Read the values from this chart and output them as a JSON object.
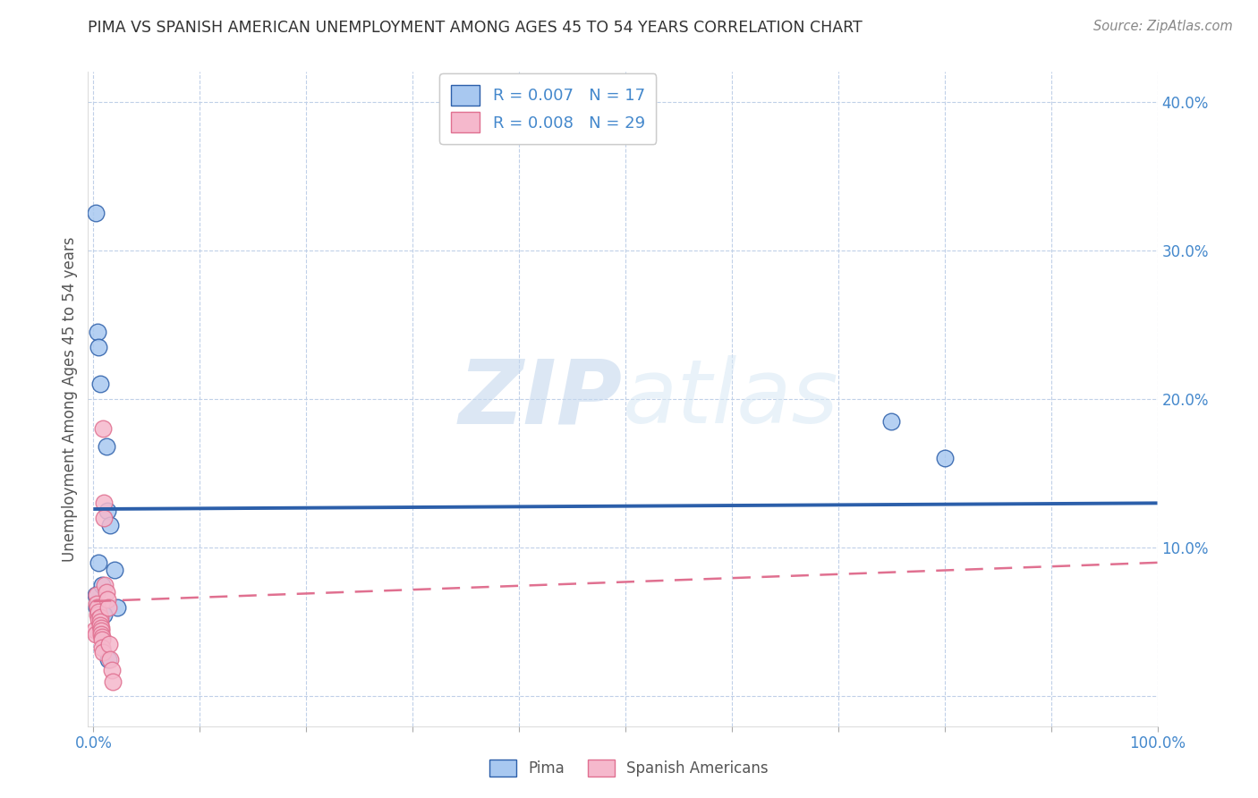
{
  "title": "PIMA VS SPANISH AMERICAN UNEMPLOYMENT AMONG AGES 45 TO 54 YEARS CORRELATION CHART",
  "source": "Source: ZipAtlas.com",
  "ylabel": "Unemployment Among Ages 45 to 54 years",
  "xlim": [
    -0.005,
    1.0
  ],
  "ylim": [
    -0.02,
    0.42
  ],
  "xtick_positions": [
    0.0,
    0.1,
    0.2,
    0.3,
    0.4,
    0.5,
    0.6,
    0.7,
    0.8,
    0.9,
    1.0
  ],
  "xticklabels": [
    "0.0%",
    "",
    "",
    "",
    "",
    "",
    "",
    "",
    "",
    "",
    "100.0%"
  ],
  "ytick_positions": [
    0.0,
    0.1,
    0.2,
    0.3,
    0.4
  ],
  "yticklabels": [
    "",
    "10.0%",
    "20.0%",
    "30.0%",
    "40.0%"
  ],
  "legend_pima": "R = 0.007   N = 17",
  "legend_spanish": "R = 0.008   N = 29",
  "pima_color": "#a8c8f0",
  "spanish_color": "#f5b8cc",
  "trend_pima_color": "#2c5faa",
  "trend_spanish_color": "#e07090",
  "tick_color": "#4488cc",
  "watermark_zip": "ZIP",
  "watermark_atlas": "atlas",
  "pima_x": [
    0.002,
    0.004,
    0.005,
    0.006,
    0.012,
    0.013,
    0.016,
    0.02,
    0.022,
    0.75,
    0.8,
    0.002,
    0.003,
    0.005,
    0.008,
    0.01,
    0.014
  ],
  "pima_y": [
    0.325,
    0.245,
    0.235,
    0.21,
    0.168,
    0.125,
    0.115,
    0.085,
    0.06,
    0.185,
    0.16,
    0.068,
    0.06,
    0.09,
    0.075,
    0.055,
    0.025
  ],
  "sp_x": [
    0.001,
    0.002,
    0.003,
    0.003,
    0.004,
    0.004,
    0.005,
    0.005,
    0.006,
    0.006,
    0.006,
    0.007,
    0.007,
    0.007,
    0.008,
    0.008,
    0.008,
    0.009,
    0.009,
    0.01,
    0.01,
    0.011,
    0.012,
    0.013,
    0.014,
    0.015,
    0.016,
    0.017,
    0.018
  ],
  "sp_y": [
    0.045,
    0.042,
    0.068,
    0.062,
    0.06,
    0.055,
    0.057,
    0.052,
    0.053,
    0.05,
    0.048,
    0.046,
    0.044,
    0.042,
    0.04,
    0.038,
    0.033,
    0.18,
    0.03,
    0.13,
    0.12,
    0.075,
    0.07,
    0.065,
    0.06,
    0.035,
    0.025,
    0.018,
    0.01
  ],
  "pima_trend_y0": 0.126,
  "pima_trend_y1": 0.13,
  "sp_trend_y0": 0.064,
  "sp_trend_y1": 0.09
}
